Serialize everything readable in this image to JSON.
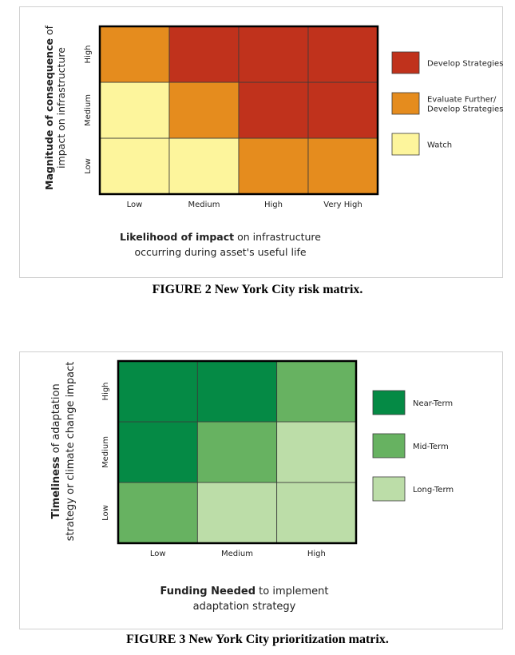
{
  "charts": [
    {
      "caption": "FIGURE 2  New York City risk matrix.",
      "xlabel_bold": "Likelihood of impact",
      "xlabel_rest1": " on infrastructure",
      "xlabel_line2": "occurring during asset's useful life",
      "ylabel_bold": "Magnitude of consequence",
      "ylabel_rest1": " of",
      "ylabel_line2": "impact on infrastructure",
      "legend": [
        {
          "label": "Develop Strategies",
          "color": "#c0321c"
        },
        {
          "label": "Evaluate Further/",
          "label2": "Develop Strategies",
          "color": "#e58c1e"
        },
        {
          "label": "Watch",
          "color": "#fdf59c"
        }
      ]
    },
    {
      "caption": "FIGURE 3  New York City prioritization matrix.",
      "xlabel_bold": "Funding Needed",
      "xlabel_rest1": " to implement",
      "xlabel_line2": "adaptation strategy",
      "ylabel_bold": "Timeliness",
      "ylabel_rest1": " of adaptation",
      "ylabel_line2": "strategy or climate change impact",
      "legend": [
        {
          "label": "Near-Term",
          "color": "#058a45"
        },
        {
          "label": "Mid-Term",
          "color": "#67b261"
        },
        {
          "label": "Long-Term",
          "color": "#bcdda8"
        }
      ]
    }
  ],
  "chart_data": [
    {
      "type": "heatmap",
      "x_categories": [
        "Low",
        "Medium",
        "High",
        "Very High"
      ],
      "y_categories": [
        "Low",
        "Medium",
        "High"
      ],
      "cells": [
        [
          "Watch",
          "Watch",
          "Evaluate Further/ Develop Strategies",
          "Evaluate Further/ Develop Strategies"
        ],
        [
          "Watch",
          "Evaluate Further/ Develop Strategies",
          "Develop Strategies",
          "Develop Strategies"
        ],
        [
          "Evaluate Further/ Develop Strategies",
          "Develop Strategies",
          "Develop Strategies",
          "Develop Strategies"
        ]
      ],
      "colors": {
        "Develop Strategies": "#c0321c",
        "Evaluate Further/ Develop Strategies": "#e58c1e",
        "Watch": "#fdf59c"
      }
    },
    {
      "type": "heatmap",
      "x_categories": [
        "Low",
        "Medium",
        "High"
      ],
      "y_categories": [
        "Low",
        "Medium",
        "High"
      ],
      "cells": [
        [
          "Mid-Term",
          "Long-Term",
          "Long-Term"
        ],
        [
          "Near-Term",
          "Mid-Term",
          "Long-Term"
        ],
        [
          "Near-Term",
          "Near-Term",
          "Mid-Term"
        ]
      ],
      "colors": {
        "Near-Term": "#058a45",
        "Mid-Term": "#67b261",
        "Long-Term": "#bcdda8"
      }
    }
  ]
}
